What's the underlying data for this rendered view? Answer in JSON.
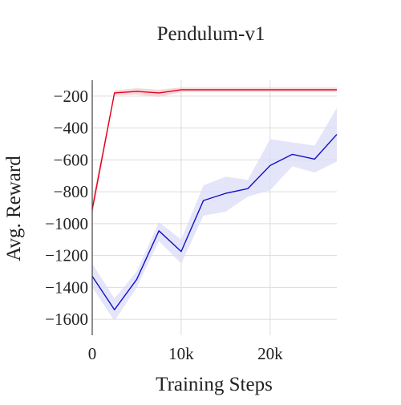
{
  "chart_data": {
    "type": "line",
    "title": "Pendulum-v1",
    "xlabel": "Training Steps",
    "ylabel": "Avg. Reward",
    "xlim": [
      0,
      27500
    ],
    "ylim": [
      -1700,
      -100
    ],
    "grid": true,
    "legend": "none",
    "xticks": [
      {
        "value": 0,
        "label": "0"
      },
      {
        "value": 10000,
        "label": "10k"
      },
      {
        "value": 20000,
        "label": "20k"
      }
    ],
    "yticks": [
      {
        "value": -200,
        "label": "−200"
      },
      {
        "value": -400,
        "label": "−400"
      },
      {
        "value": -600,
        "label": "−600"
      },
      {
        "value": -800,
        "label": "−800"
      },
      {
        "value": -1000,
        "label": "−1000"
      },
      {
        "value": -1200,
        "label": "−1200"
      },
      {
        "value": -1400,
        "label": "−1400"
      },
      {
        "value": -1600,
        "label": "−1600"
      }
    ],
    "series": [
      {
        "color": "#e0001b",
        "band_color": "#f5c9cf",
        "x": [
          0,
          2500,
          5000,
          7500,
          10000,
          12500,
          15000,
          17500,
          20000,
          22500,
          25000,
          27500
        ],
        "y": [
          -910,
          -180,
          -170,
          -180,
          -160,
          -160,
          -160,
          -160,
          -160,
          -160,
          -160,
          -160
        ],
        "lower": [
          -960,
          -195,
          -190,
          -205,
          -175,
          -175,
          -175,
          -175,
          -175,
          -175,
          -175,
          -175
        ],
        "upper": [
          -860,
          -165,
          -150,
          -160,
          -145,
          -145,
          -145,
          -145,
          -145,
          -145,
          -145,
          -145
        ]
      },
      {
        "color": "#1010c8",
        "band_color": "#dcdcf8",
        "x": [
          0,
          2500,
          5000,
          7500,
          10000,
          12500,
          15000,
          17500,
          20000,
          22500,
          25000,
          27500
        ],
        "y": [
          -1330,
          -1540,
          -1350,
          -1045,
          -1175,
          -855,
          -810,
          -780,
          -635,
          -565,
          -595,
          -440
        ],
        "lower": [
          -1400,
          -1610,
          -1400,
          -1110,
          -1250,
          -950,
          -925,
          -830,
          -790,
          -640,
          -680,
          -610
        ],
        "upper": [
          -1250,
          -1470,
          -1300,
          -990,
          -1100,
          -760,
          -705,
          -725,
          -470,
          -490,
          -510,
          -275
        ]
      }
    ]
  }
}
